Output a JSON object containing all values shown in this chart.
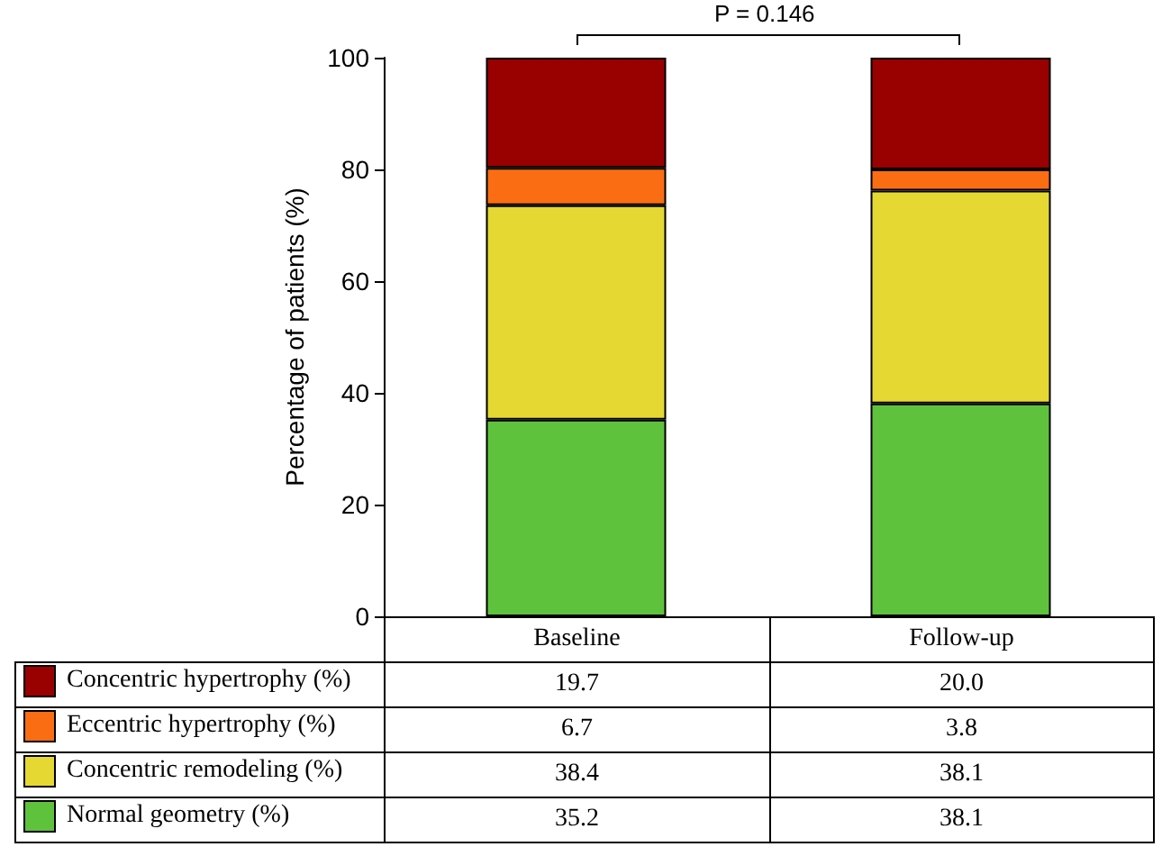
{
  "chart_data": {
    "type": "bar",
    "stacked": true,
    "ylabel": "Percentage of patients (%)",
    "categories": [
      "Baseline",
      "Follow-up"
    ],
    "series": [
      {
        "name": "Normal geometry (%)",
        "color": "#5fc23c",
        "values": [
          35.2,
          38.1
        ],
        "value_labels": [
          "35.2",
          "38.1"
        ]
      },
      {
        "name": "Concentric remodeling (%)",
        "color": "#e5d833",
        "values": [
          38.4,
          38.1
        ],
        "value_labels": [
          "38.4",
          "38.1"
        ]
      },
      {
        "name": "Eccentric hypertrophy (%)",
        "color": "#fa6d13",
        "values": [
          6.7,
          3.8
        ],
        "value_labels": [
          "6.7",
          "3.8"
        ]
      },
      {
        "name": "Concentric hypertrophy (%)",
        "color": "#990000",
        "values": [
          19.7,
          20.0
        ],
        "value_labels": [
          "19.7",
          "20.0"
        ]
      }
    ],
    "ylim": [
      0,
      100
    ],
    "yticks": [
      0,
      20,
      40,
      60,
      80,
      100
    ],
    "grid": false,
    "legend": "bottom left",
    "annotations": [
      "P = 0.146"
    ]
  }
}
